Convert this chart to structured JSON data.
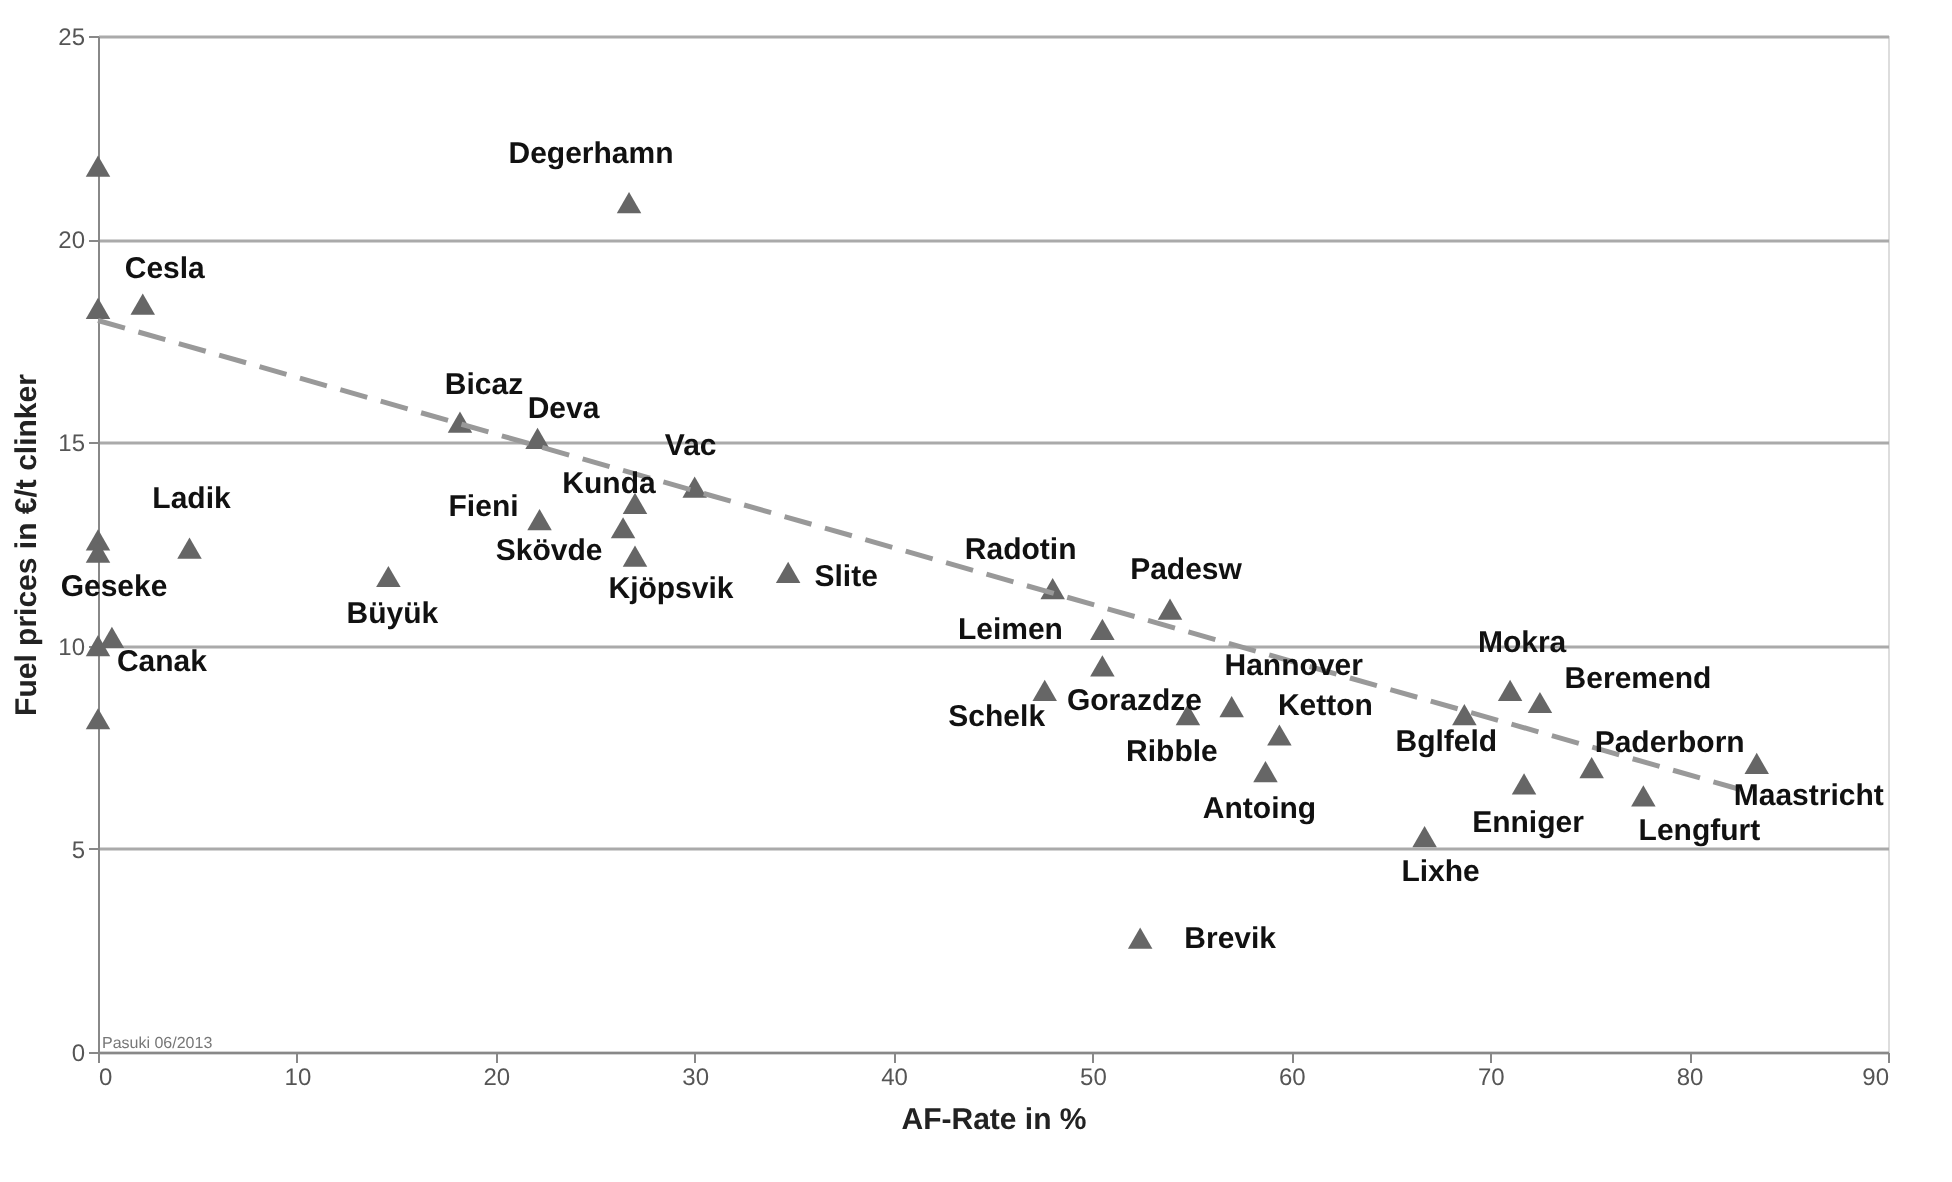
{
  "chart_data": {
    "type": "scatter",
    "xlabel": "AF-Rate in %",
    "ylabel": "Fuel prices in €/t clinker",
    "xlim": [
      0,
      90
    ],
    "xticks": [
      0,
      10,
      20,
      30,
      40,
      50,
      60,
      70,
      80,
      90
    ],
    "ylim": [
      0,
      25
    ],
    "yticks": [
      0,
      5,
      10,
      15,
      20,
      25
    ],
    "grid": "y",
    "series": [
      {
        "marker": "triangle",
        "color": "#666666",
        "x": [
          0,
          0,
          0,
          0,
          0,
          0,
          2.25,
          26.7,
          18.2,
          22.1,
          30.0,
          27.0,
          22.2,
          26.4,
          27.0,
          4.6,
          14.6,
          34.7,
          0.7,
          48.0,
          53.9,
          50.5,
          50.5,
          47.6,
          54.8,
          57.0,
          59.4,
          58.7,
          68.7,
          71.0,
          72.5,
          71.7,
          75.1,
          77.7,
          83.4,
          66.7,
          52.4
        ],
        "values": [
          21.8,
          18.3,
          12.6,
          12.3,
          10.0,
          8.2,
          18.4,
          20.9,
          15.5,
          15.1,
          13.9,
          13.5,
          13.1,
          12.9,
          12.2,
          12.4,
          11.7,
          11.8,
          10.2,
          11.4,
          10.9,
          10.4,
          9.5,
          8.9,
          8.3,
          8.5,
          7.8,
          6.9,
          8.3,
          8.9,
          8.6,
          6.6,
          7.0,
          6.3,
          7.1,
          5.3,
          2.8
        ]
      },
      {
        "type": "line",
        "marker": "none",
        "color": "#999999",
        "line_style": "dashed",
        "x": [
          0,
          83
        ],
        "values": [
          18.0,
          6.4
        ]
      }
    ],
    "annotations": [
      {
        "text": "Cesla",
        "x": 2.25,
        "y": 18.4
      },
      {
        "text": "Degerhamn",
        "x": 26.7,
        "y": 20.9
      },
      {
        "text": "Bicaz",
        "x": 18.2,
        "y": 15.5
      },
      {
        "text": "Deva",
        "x": 22.1,
        "y": 15.1
      },
      {
        "text": "Vac",
        "x": 30.0,
        "y": 13.9
      },
      {
        "text": "Kunda",
        "x": 27.0,
        "y": 13.5
      },
      {
        "text": "Fieni",
        "x": 22.2,
        "y": 13.1
      },
      {
        "text": "Skövde",
        "x": 26.4,
        "y": 12.9
      },
      {
        "text": "Kjöpsvik",
        "x": 27.0,
        "y": 12.2
      },
      {
        "text": "Ladik",
        "x": 4.6,
        "y": 12.4
      },
      {
        "text": "Geseke",
        "x": 0,
        "y": 12.3
      },
      {
        "text": "Büyük",
        "x": 14.6,
        "y": 11.7
      },
      {
        "text": "Slite",
        "x": 34.7,
        "y": 11.8
      },
      {
        "text": "Canak",
        "x": 0.7,
        "y": 10.2
      },
      {
        "text": "Radotin",
        "x": 48.0,
        "y": 11.4
      },
      {
        "text": "Padesw",
        "x": 53.9,
        "y": 10.9
      },
      {
        "text": "Leimen",
        "x": 50.5,
        "y": 10.4
      },
      {
        "text": "Gorazdze",
        "x": 50.5,
        "y": 9.5
      },
      {
        "text": "Schelk",
        "x": 47.6,
        "y": 8.9
      },
      {
        "text": "Ribble",
        "x": 54.8,
        "y": 8.3
      },
      {
        "text": "Hannover",
        "x": 57.0,
        "y": 8.5
      },
      {
        "text": "Ketton",
        "x": 59.4,
        "y": 7.8
      },
      {
        "text": "Antoing",
        "x": 58.7,
        "y": 6.9
      },
      {
        "text": "Bglfeld",
        "x": 68.7,
        "y": 8.3
      },
      {
        "text": "Mokra",
        "x": 71.0,
        "y": 8.9
      },
      {
        "text": "Beremend",
        "x": 72.5,
        "y": 8.6
      },
      {
        "text": "Enniger",
        "x": 71.7,
        "y": 6.6
      },
      {
        "text": "Paderborn",
        "x": 75.1,
        "y": 7.0
      },
      {
        "text": "Lengfurt",
        "x": 77.7,
        "y": 6.3
      },
      {
        "text": "Maastricht",
        "x": 83.4,
        "y": 7.1
      },
      {
        "text": "Lixhe",
        "x": 66.7,
        "y": 5.3
      },
      {
        "text": "Brevik",
        "x": 52.4,
        "y": 2.8
      },
      "Pasuki 06/2013"
    ]
  }
}
